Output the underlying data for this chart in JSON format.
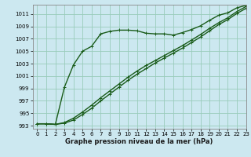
{
  "xlabel": "Graphe pression niveau de la mer (hPa)",
  "background_color": "#cce8f0",
  "grid_color": "#99ccbb",
  "line_color": "#1a5c1a",
  "xlim": [
    -0.5,
    23
  ],
  "ylim": [
    992.5,
    1012.5
  ],
  "yticks": [
    993,
    995,
    997,
    999,
    1001,
    1003,
    1005,
    1007,
    1009,
    1011
  ],
  "xticks": [
    0,
    1,
    2,
    3,
    4,
    5,
    6,
    7,
    8,
    9,
    10,
    11,
    12,
    13,
    14,
    15,
    16,
    17,
    18,
    19,
    20,
    21,
    22,
    23
  ],
  "series": [
    [
      993.3,
      993.3,
      993.2,
      999.2,
      1002.8,
      1005.0,
      1005.8,
      1007.8,
      1008.2,
      1008.4,
      1008.4,
      1008.3,
      1007.9,
      1007.8,
      1007.8,
      1007.6,
      1008.0,
      1008.5,
      1009.1,
      1010.0,
      1010.8,
      1011.2,
      1012.0,
      1012.4
    ],
    [
      993.3,
      993.3,
      993.2,
      993.5,
      994.2,
      995.2,
      996.3,
      997.5,
      998.6,
      999.7,
      1000.8,
      1001.8,
      1002.7,
      1003.5,
      1004.3,
      1005.1,
      1005.9,
      1006.8,
      1007.7,
      1008.7,
      1009.6,
      1010.4,
      1011.4,
      1012.2
    ],
    [
      993.3,
      993.3,
      993.2,
      993.4,
      993.9,
      994.8,
      995.8,
      997.0,
      998.1,
      999.2,
      1000.3,
      1001.3,
      1002.2,
      1003.1,
      1003.9,
      1004.7,
      1005.5,
      1006.4,
      1007.3,
      1008.3,
      1009.3,
      1010.1,
      1011.1,
      1011.9
    ]
  ],
  "marker": "+",
  "markersize": 3.5,
  "linewidth": 1.0
}
